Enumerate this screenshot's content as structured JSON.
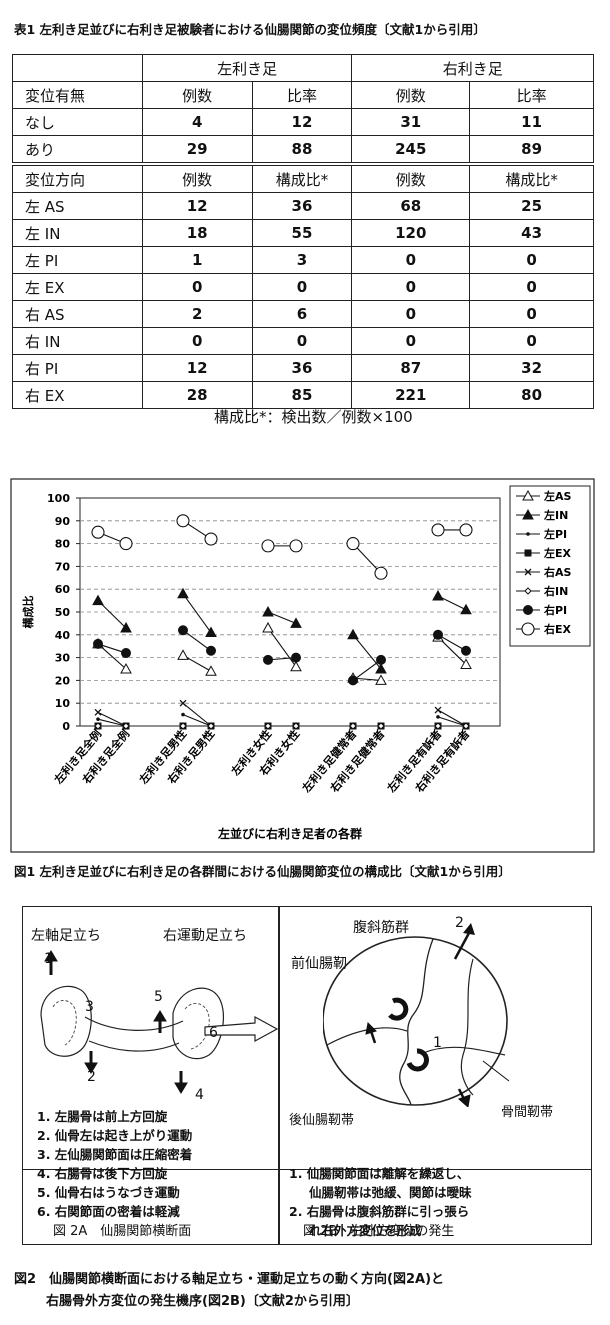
{
  "table1": {
    "caption": "表1 左利き足並びに右利き足被験者における仙腸関節の変位頻度〔文献1から引用〕",
    "group_headers": [
      "左利き足",
      "右利き足"
    ],
    "section1": {
      "header": [
        "変位有無",
        "例数",
        "比率",
        "例数",
        "比率"
      ],
      "rows": [
        [
          "なし",
          "4",
          "12",
          "31",
          "11"
        ],
        [
          "あり",
          "29",
          "88",
          "245",
          "89"
        ]
      ]
    },
    "section2": {
      "header": [
        "変位方向",
        "例数",
        "構成比*",
        "例数",
        "構成比*"
      ],
      "rows": [
        [
          "左 AS",
          "12",
          "36",
          "68",
          "25"
        ],
        [
          "左 IN",
          "18",
          "55",
          "120",
          "43"
        ],
        [
          "左 PI",
          "1",
          "3",
          "0",
          "0"
        ],
        [
          "左 EX",
          "0",
          "0",
          "0",
          "0"
        ],
        [
          "右 AS",
          "2",
          "6",
          "0",
          "0"
        ],
        [
          "右 IN",
          "0",
          "0",
          "0",
          "0"
        ],
        [
          "右 PI",
          "12",
          "36",
          "87",
          "32"
        ],
        [
          "右 EX",
          "28",
          "85",
          "221",
          "80"
        ]
      ]
    },
    "footnote": "構成比*：検出数／例数×100"
  },
  "chart_data": {
    "type": "line",
    "ylabel": "構成比",
    "xlabel": "左並びに右利き足者の各群",
    "ylim": [
      0,
      100
    ],
    "yticks": [
      0,
      10,
      20,
      30,
      40,
      50,
      60,
      70,
      80,
      90,
      100
    ],
    "categories": [
      "左利き足全例",
      "右利き足全例",
      "左利き足男性",
      "右利き足男性",
      "左利き女性",
      "右利き女性",
      "左利き足健常者",
      "右利き足健常者",
      "左利き足有訴者",
      "右利き足有訴者"
    ],
    "grid": "horizontal dashed",
    "legend_position": "right",
    "series": [
      {
        "name": "左AS",
        "marker": "open-triangle",
        "values": [
          36,
          25,
          31,
          24,
          43,
          26,
          21,
          20,
          39,
          27
        ]
      },
      {
        "name": "左IN",
        "marker": "filled-triangle",
        "values": [
          55,
          43,
          58,
          41,
          50,
          45,
          40,
          25,
          57,
          51
        ]
      },
      {
        "name": "左PI",
        "marker": "small-dot",
        "values": [
          3,
          0,
          5,
          0,
          0,
          0,
          0,
          0,
          4,
          0
        ]
      },
      {
        "name": "左EX",
        "marker": "filled-square",
        "values": [
          0,
          0,
          0,
          0,
          0,
          0,
          0,
          0,
          0,
          0
        ]
      },
      {
        "name": "右AS",
        "marker": "x",
        "values": [
          6,
          0,
          10,
          0,
          0,
          0,
          0,
          0,
          7,
          0
        ]
      },
      {
        "name": "右IN",
        "marker": "small-diamond",
        "values": [
          0,
          0,
          0,
          0,
          0,
          0,
          0,
          0,
          0,
          0
        ]
      },
      {
        "name": "右PI",
        "marker": "filled-circle",
        "values": [
          36,
          32,
          42,
          33,
          29,
          30,
          20,
          29,
          40,
          33
        ]
      },
      {
        "name": "右EX",
        "marker": "open-circle",
        "values": [
          85,
          80,
          90,
          82,
          79,
          79,
          80,
          67,
          86,
          86
        ]
      }
    ]
  },
  "figure1_caption": "図1 左利き足並びに右利き足の各群間における仙腸関節変位の構成比〔文献1から引用〕",
  "figure2": {
    "left": {
      "title_left": "左軸足立ち",
      "title_right": "右運動足立ち",
      "numbers": [
        "1",
        "2",
        "3",
        "4",
        "5",
        "6"
      ],
      "items": [
        "1. 左腸骨は前上方回旋",
        "2. 仙骨左は起き上がり運動",
        "3. 左仙腸関節面は圧縮密着",
        "4. 右腸骨は後下方回旋",
        "5. 仙骨右はうなづき運動",
        "6. 右関節面の密着は軽減"
      ],
      "subcaption": "図 2A　仙腸関節横断面"
    },
    "right": {
      "label_muscle": "腹斜筋群",
      "label_muscle_num": "2",
      "label_anterior": "前仙腸靭",
      "label_posterior": "後仙腸靭帯",
      "label_interosseous": "骨間靭帯",
      "label_num1": "1",
      "items": [
        "1. 仙腸関節面は離解を繰返し、",
        "仙腸靭帯は弛緩、関節は曖昧",
        "2. 右腸骨は腹斜筋群に引っ張ら",
        "れ右外方変位を形成"
      ],
      "subcaption": "図 2B　右外方変位の発生"
    },
    "caption_line1": "図2　仙腸関節横断面における軸足立ち・運動足立ちの動く方向(図2A)と",
    "caption_line2": "右腸骨外方変位の発生機序(図2B)〔文献2から引用〕"
  }
}
